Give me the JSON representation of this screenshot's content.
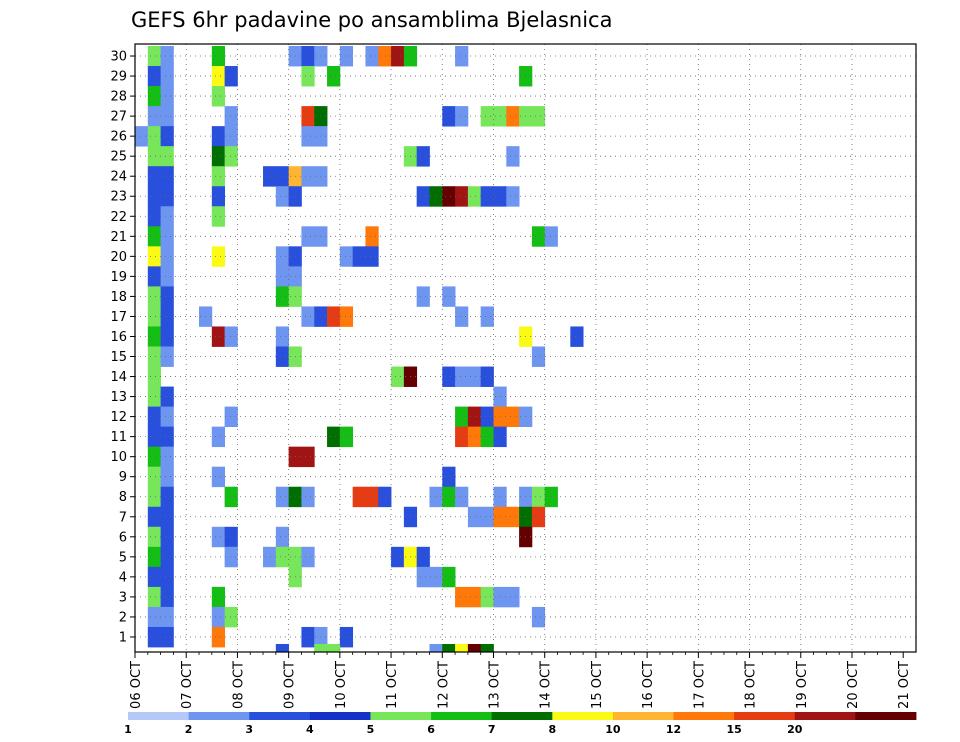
{
  "chart_data": {
    "type": "heatmap",
    "title": "GEFS 6hr padavine po ansamblima Bjelasnica",
    "xlabel": "",
    "ylabel": "",
    "x_ticks": [
      "06 OCT",
      "07 OCT",
      "08 OCT",
      "09 OCT",
      "10 OCT",
      "11 OCT",
      "12 OCT",
      "13 OCT",
      "14 OCT",
      "15 OCT",
      "16 OCT",
      "17 OCT",
      "18 OCT",
      "19 OCT",
      "20 OCT",
      "21 OCT"
    ],
    "y_ticks": [
      "1",
      "2",
      "3",
      "4",
      "5",
      "6",
      "7",
      "8",
      "9",
      "10",
      "11",
      "12",
      "13",
      "14",
      "15",
      "16",
      "17",
      "18",
      "19",
      "20",
      "21",
      "22",
      "23",
      "24",
      "25",
      "26",
      "27",
      "28",
      "29",
      "30"
    ],
    "steps_per_day": 4,
    "n_steps": 60,
    "n_members": 30,
    "grid": "dotted",
    "colorbar": {
      "levels": [
        "1",
        "2",
        "3",
        "4",
        "5",
        "6",
        "7",
        "8",
        "10",
        "12",
        "15",
        "20"
      ],
      "colors": [
        "#b4c8fa",
        "#6e96f0",
        "#2850dc",
        "#1432c8",
        "#78e65a",
        "#14be14",
        "#006e00",
        "#fafa14",
        "#ffb432",
        "#ff780a",
        "#e63c14",
        "#a01414",
        "#640000"
      ]
    },
    "cells": [
      {
        "m": 30,
        "s": [
          [
            1,
            4
          ],
          [
            2,
            1
          ],
          [
            6,
            5
          ],
          [
            12,
            1
          ],
          [
            13,
            2
          ],
          [
            14,
            1
          ],
          [
            16,
            1
          ],
          [
            18,
            1
          ],
          [
            19,
            9
          ],
          [
            20,
            11
          ],
          [
            21,
            5
          ],
          [
            25,
            1
          ]
        ]
      },
      {
        "m": 29,
        "s": [
          [
            1,
            2
          ],
          [
            2,
            1
          ],
          [
            6,
            7
          ],
          [
            7,
            2
          ],
          [
            13,
            4
          ],
          [
            15,
            5
          ],
          [
            30,
            5
          ]
        ]
      },
      {
        "m": 28,
        "s": [
          [
            1,
            5
          ],
          [
            2,
            1
          ],
          [
            6,
            4
          ]
        ]
      },
      {
        "m": 27,
        "s": [
          [
            1,
            1
          ],
          [
            2,
            1
          ],
          [
            7,
            1
          ],
          [
            13,
            10
          ],
          [
            14,
            6
          ],
          [
            24,
            2
          ],
          [
            25,
            1
          ],
          [
            27,
            4
          ],
          [
            28,
            4
          ],
          [
            29,
            9
          ],
          [
            30,
            4
          ],
          [
            31,
            4
          ]
        ]
      },
      {
        "m": 26,
        "s": [
          [
            0,
            1
          ],
          [
            1,
            4
          ],
          [
            2,
            2
          ],
          [
            6,
            2
          ],
          [
            7,
            1
          ],
          [
            13,
            1
          ],
          [
            14,
            1
          ]
        ]
      },
      {
        "m": 25,
        "s": [
          [
            1,
            4
          ],
          [
            2,
            4
          ],
          [
            6,
            6
          ],
          [
            7,
            4
          ],
          [
            21,
            4
          ],
          [
            22,
            2
          ],
          [
            29,
            1
          ]
        ]
      },
      {
        "m": 24,
        "s": [
          [
            1,
            2
          ],
          [
            2,
            2
          ],
          [
            6,
            4
          ],
          [
            10,
            2
          ],
          [
            11,
            2
          ],
          [
            12,
            8
          ],
          [
            13,
            1
          ],
          [
            14,
            1
          ]
        ]
      },
      {
        "m": 23,
        "s": [
          [
            1,
            2
          ],
          [
            2,
            2
          ],
          [
            6,
            2
          ],
          [
            11,
            1
          ],
          [
            12,
            2
          ],
          [
            22,
            2
          ],
          [
            23,
            6
          ],
          [
            24,
            12
          ],
          [
            25,
            11
          ],
          [
            26,
            4
          ],
          [
            27,
            2
          ],
          [
            28,
            2
          ],
          [
            29,
            1
          ]
        ]
      },
      {
        "m": 22,
        "s": [
          [
            1,
            2
          ],
          [
            2,
            1
          ],
          [
            6,
            4
          ]
        ]
      },
      {
        "m": 21,
        "s": [
          [
            1,
            5
          ],
          [
            2,
            1
          ],
          [
            13,
            1
          ],
          [
            14,
            1
          ],
          [
            18,
            9
          ],
          [
            31,
            5
          ],
          [
            32,
            1
          ]
        ]
      },
      {
        "m": 20,
        "s": [
          [
            1,
            7
          ],
          [
            2,
            1
          ],
          [
            6,
            7
          ],
          [
            11,
            1
          ],
          [
            12,
            2
          ],
          [
            16,
            1
          ],
          [
            17,
            2
          ],
          [
            18,
            2
          ]
        ]
      },
      {
        "m": 19,
        "s": [
          [
            1,
            2
          ],
          [
            2,
            1
          ],
          [
            11,
            1
          ],
          [
            12,
            1
          ]
        ]
      },
      {
        "m": 18,
        "s": [
          [
            1,
            4
          ],
          [
            2,
            2
          ],
          [
            11,
            5
          ],
          [
            12,
            4
          ],
          [
            22,
            1
          ],
          [
            24,
            1
          ]
        ]
      },
      {
        "m": 17,
        "s": [
          [
            1,
            4
          ],
          [
            2,
            2
          ],
          [
            5,
            1
          ],
          [
            13,
            1
          ],
          [
            14,
            2
          ],
          [
            15,
            10
          ],
          [
            16,
            9
          ],
          [
            25,
            1
          ],
          [
            27,
            1
          ]
        ]
      },
      {
        "m": 16,
        "s": [
          [
            1,
            5
          ],
          [
            2,
            2
          ],
          [
            6,
            11
          ],
          [
            7,
            1
          ],
          [
            11,
            1
          ],
          [
            30,
            7
          ],
          [
            34,
            2
          ]
        ]
      },
      {
        "m": 15,
        "s": [
          [
            1,
            4
          ],
          [
            2,
            1
          ],
          [
            11,
            2
          ],
          [
            12,
            4
          ],
          [
            31,
            1
          ]
        ]
      },
      {
        "m": 14,
        "s": [
          [
            1,
            4
          ],
          [
            20,
            4
          ],
          [
            21,
            12
          ],
          [
            24,
            2
          ],
          [
            25,
            1
          ],
          [
            26,
            1
          ],
          [
            27,
            2
          ]
        ]
      },
      {
        "m": 13,
        "s": [
          [
            1,
            4
          ],
          [
            2,
            2
          ],
          [
            28,
            1
          ]
        ]
      },
      {
        "m": 12,
        "s": [
          [
            1,
            2
          ],
          [
            2,
            1
          ],
          [
            7,
            1
          ],
          [
            25,
            5
          ],
          [
            26,
            11
          ],
          [
            27,
            2
          ],
          [
            28,
            9
          ],
          [
            29,
            9
          ],
          [
            30,
            1
          ]
        ]
      },
      {
        "m": 11,
        "s": [
          [
            1,
            2
          ],
          [
            2,
            2
          ],
          [
            6,
            1
          ],
          [
            15,
            6
          ],
          [
            16,
            5
          ],
          [
            25,
            10
          ],
          [
            26,
            9
          ],
          [
            27,
            5
          ],
          [
            28,
            2
          ]
        ]
      },
      {
        "m": 10,
        "s": [
          [
            1,
            5
          ],
          [
            2,
            1
          ],
          [
            12,
            11
          ],
          [
            13,
            11
          ]
        ]
      },
      {
        "m": 9,
        "s": [
          [
            1,
            4
          ],
          [
            2,
            1
          ],
          [
            6,
            1
          ],
          [
            24,
            2
          ]
        ]
      },
      {
        "m": 8,
        "s": [
          [
            1,
            4
          ],
          [
            2,
            2
          ],
          [
            7,
            5
          ],
          [
            11,
            1
          ],
          [
            12,
            6
          ],
          [
            13,
            1
          ],
          [
            17,
            10
          ],
          [
            18,
            10
          ],
          [
            19,
            2
          ],
          [
            23,
            1
          ],
          [
            24,
            5
          ],
          [
            25,
            1
          ],
          [
            28,
            1
          ],
          [
            30,
            1
          ],
          [
            31,
            4
          ],
          [
            32,
            5
          ]
        ]
      },
      {
        "m": 7,
        "s": [
          [
            1,
            2
          ],
          [
            2,
            2
          ],
          [
            21,
            2
          ],
          [
            26,
            1
          ],
          [
            27,
            1
          ],
          [
            28,
            9
          ],
          [
            29,
            9
          ],
          [
            30,
            6
          ],
          [
            31,
            10
          ]
        ]
      },
      {
        "m": 6,
        "s": [
          [
            1,
            4
          ],
          [
            2,
            2
          ],
          [
            6,
            1
          ],
          [
            7,
            2
          ],
          [
            11,
            1
          ],
          [
            30,
            12
          ]
        ]
      },
      {
        "m": 5,
        "s": [
          [
            1,
            5
          ],
          [
            2,
            2
          ],
          [
            7,
            1
          ],
          [
            10,
            1
          ],
          [
            11,
            4
          ],
          [
            12,
            4
          ],
          [
            13,
            1
          ],
          [
            20,
            2
          ],
          [
            21,
            7
          ],
          [
            22,
            2
          ]
        ]
      },
      {
        "m": 4,
        "s": [
          [
            1,
            2
          ],
          [
            2,
            2
          ],
          [
            12,
            4
          ],
          [
            22,
            1
          ],
          [
            23,
            1
          ],
          [
            24,
            5
          ]
        ]
      },
      {
        "m": 3,
        "s": [
          [
            1,
            4
          ],
          [
            2,
            2
          ],
          [
            6,
            5
          ],
          [
            25,
            9
          ],
          [
            26,
            9
          ],
          [
            27,
            4
          ],
          [
            28,
            1
          ],
          [
            29,
            1
          ]
        ]
      },
      {
        "m": 2,
        "s": [
          [
            1,
            1
          ],
          [
            2,
            1
          ],
          [
            6,
            1
          ],
          [
            7,
            4
          ],
          [
            31,
            1
          ]
        ]
      },
      {
        "m": 1,
        "s": [
          [
            1,
            2
          ],
          [
            2,
            2
          ],
          [
            6,
            9
          ],
          [
            13,
            2
          ],
          [
            14,
            1
          ],
          [
            16,
            2
          ]
        ]
      },
      {
        "m": 0,
        "s": [
          [
            11,
            2
          ],
          [
            14,
            4
          ],
          [
            15,
            4
          ],
          [
            23,
            1
          ],
          [
            24,
            6
          ],
          [
            25,
            7
          ],
          [
            26,
            12
          ],
          [
            27,
            6
          ]
        ]
      }
    ]
  }
}
